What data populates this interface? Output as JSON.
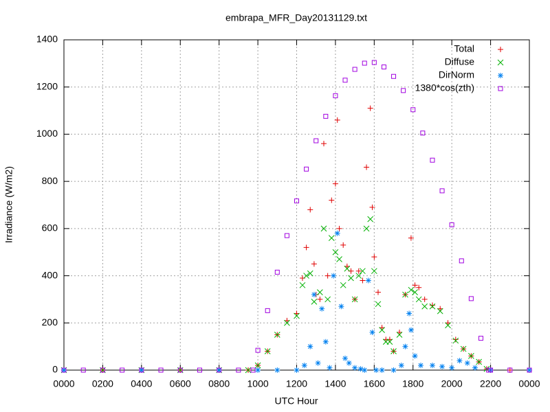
{
  "chart_data": {
    "type": "scatter",
    "title": "embrapa_MFR_Day20131129.txt",
    "x_label": "UTC Hour",
    "y_label": "Irradiance (W/m2)",
    "xlim": [
      0,
      24
    ],
    "ylim": [
      0,
      1400
    ],
    "xticks": [
      {
        "value": 0,
        "label": "0000"
      },
      {
        "value": 2,
        "label": "0200"
      },
      {
        "value": 4,
        "label": "0400"
      },
      {
        "value": 6,
        "label": "0600"
      },
      {
        "value": 8,
        "label": "0800"
      },
      {
        "value": 10,
        "label": "1000"
      },
      {
        "value": 12,
        "label": "1200"
      },
      {
        "value": 14,
        "label": "1400"
      },
      {
        "value": 16,
        "label": "1600"
      },
      {
        "value": 18,
        "label": "1800"
      },
      {
        "value": 20,
        "label": "2000"
      },
      {
        "value": 22,
        "label": "2200"
      },
      {
        "value": 24,
        "label": "0000"
      }
    ],
    "yticks": [
      0,
      200,
      400,
      600,
      800,
      1000,
      1200,
      1400
    ],
    "grid": true,
    "legend": "top-right",
    "series": [
      {
        "name": "Total",
        "color": "#e00000",
        "marker": "plus",
        "x": [
          0,
          2,
          4,
          6,
          8,
          9.5,
          10,
          10.5,
          11,
          11.5,
          12,
          12.3,
          12.5,
          12.7,
          12.9,
          13,
          13.2,
          13.4,
          13.6,
          13.8,
          14,
          14.1,
          14.2,
          14.4,
          14.6,
          14.8,
          15,
          15.2,
          15.4,
          15.6,
          15.8,
          15.9,
          16,
          16.2,
          16.4,
          16.6,
          16.8,
          17,
          17.3,
          17.6,
          17.9,
          18.1,
          18.3,
          18.6,
          19,
          19.4,
          19.8,
          20.2,
          20.6,
          21,
          21.4,
          21.8,
          22,
          23,
          24
        ],
        "values": [
          0,
          0,
          0,
          0,
          0,
          0,
          20,
          80,
          150,
          210,
          240,
          390,
          520,
          680,
          450,
          320,
          300,
          960,
          400,
          720,
          790,
          1060,
          600,
          530,
          440,
          420,
          300,
          420,
          380,
          860,
          1110,
          690,
          480,
          330,
          180,
          130,
          130,
          80,
          160,
          320,
          560,
          360,
          350,
          300,
          275,
          260,
          200,
          130,
          90,
          60,
          35,
          5,
          0,
          0,
          0
        ]
      },
      {
        "name": "Diffuse",
        "color": "#00b000",
        "marker": "cross",
        "x": [
          0,
          2,
          4,
          6,
          8,
          9.5,
          10,
          10.5,
          11,
          11.5,
          12,
          12.3,
          12.5,
          12.7,
          12.9,
          13.2,
          13.4,
          13.6,
          13.8,
          14,
          14.2,
          14.4,
          14.6,
          14.8,
          15,
          15.2,
          15.4,
          15.6,
          15.8,
          16,
          16.2,
          16.4,
          16.6,
          16.8,
          17,
          17.3,
          17.6,
          17.9,
          18.1,
          18.3,
          18.6,
          19,
          19.4,
          19.8,
          20.2,
          20.6,
          21,
          21.4,
          21.8
        ],
        "values": [
          0,
          0,
          0,
          0,
          0,
          0,
          20,
          80,
          150,
          200,
          230,
          360,
          400,
          410,
          290,
          330,
          600,
          300,
          560,
          500,
          470,
          360,
          430,
          390,
          300,
          400,
          420,
          600,
          640,
          420,
          280,
          170,
          120,
          120,
          80,
          150,
          320,
          340,
          330,
          300,
          270,
          270,
          250,
          190,
          125,
          90,
          60,
          35,
          5
        ]
      },
      {
        "name": "DirNorm",
        "color": "#0080f0",
        "marker": "star",
        "x": [
          0,
          4,
          8,
          10,
          11,
          12,
          12.4,
          12.7,
          12.9,
          13.1,
          13.3,
          13.5,
          13.7,
          13.9,
          14.1,
          14.3,
          14.5,
          14.7,
          15,
          15.3,
          15.5,
          15.7,
          15.9,
          16.1,
          16.4,
          17,
          17.4,
          17.6,
          17.8,
          17.9,
          18.1,
          18.4,
          19,
          19.5,
          20,
          20.4,
          20.8,
          21.2,
          22,
          24
        ],
        "values": [
          0,
          0,
          0,
          0,
          0,
          0,
          20,
          100,
          320,
          30,
          260,
          120,
          10,
          400,
          580,
          270,
          50,
          30,
          10,
          5,
          0,
          380,
          160,
          0,
          0,
          0,
          20,
          100,
          240,
          170,
          60,
          20,
          20,
          15,
          10,
          40,
          30,
          10,
          0,
          0
        ]
      },
      {
        "name": "1380*cos(zth)",
        "color": "#a000e0",
        "marker": "square",
        "x": [
          0,
          1,
          2,
          3,
          4,
          5,
          6,
          7,
          8,
          9,
          9.75,
          10,
          10.5,
          11,
          11.5,
          12,
          12.5,
          13,
          13.5,
          14,
          14.5,
          15,
          15.5,
          16,
          16.5,
          17,
          17.5,
          18,
          18.5,
          19,
          19.5,
          20,
          20.5,
          21,
          21.5,
          21.9,
          22,
          23,
          24
        ],
        "values": [
          0,
          0,
          0,
          0,
          0,
          0,
          0,
          0,
          0,
          0,
          0,
          84,
          252,
          415,
          570,
          717,
          852,
          972,
          1076,
          1163,
          1229,
          1275,
          1301,
          1304,
          1285,
          1245,
          1185,
          1104,
          1005,
          890,
          760,
          616,
          463,
          303,
          135,
          0,
          0,
          0,
          0
        ]
      }
    ]
  }
}
